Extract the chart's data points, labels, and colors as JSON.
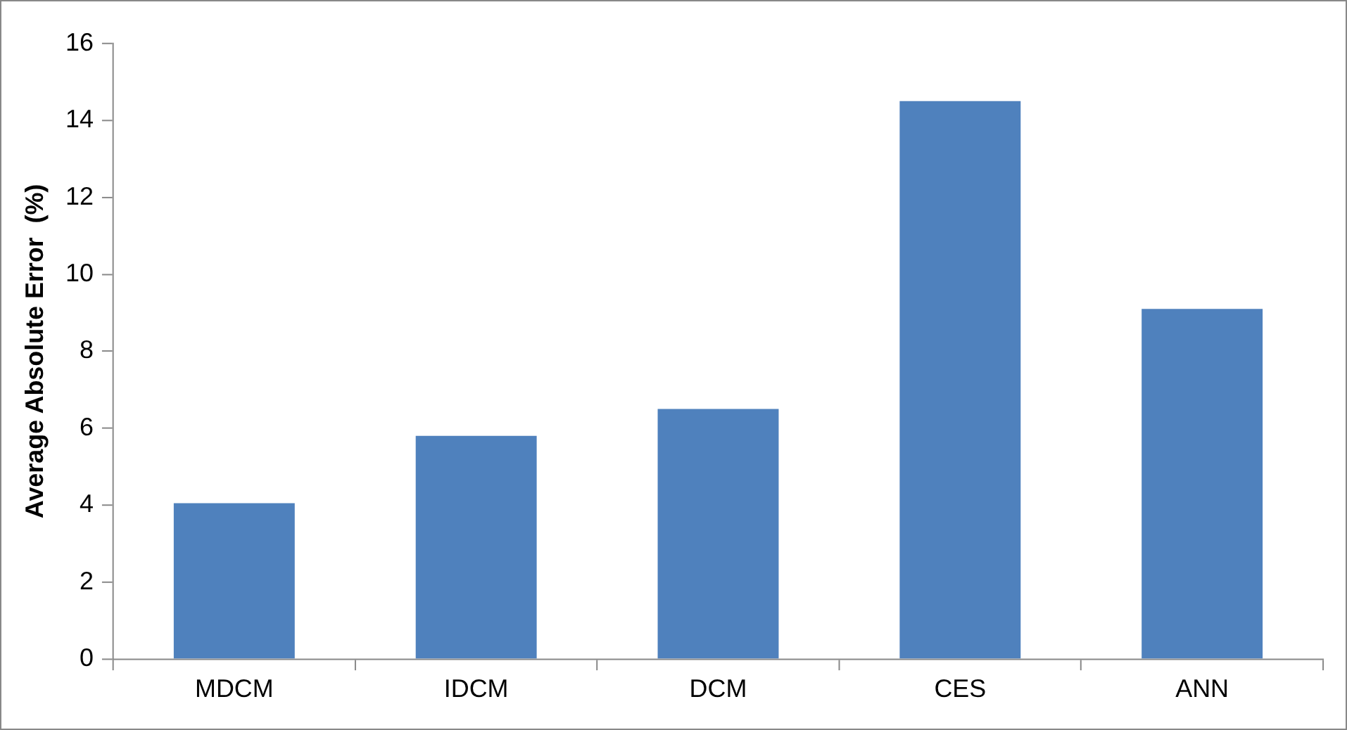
{
  "chart_data": {
    "type": "bar",
    "ylabel": "Average Absolute Error  (%)",
    "categories": [
      "MDCM",
      "IDCM",
      "DCM",
      "CES",
      "ANN"
    ],
    "values": [
      4.05,
      5.8,
      6.5,
      14.5,
      9.1
    ],
    "color": "#4f81bd",
    "ylim": [
      0,
      16
    ],
    "yticks": [
      0,
      2,
      4,
      6,
      8,
      10,
      12,
      14,
      16
    ],
    "grid": false,
    "legend": false
  }
}
